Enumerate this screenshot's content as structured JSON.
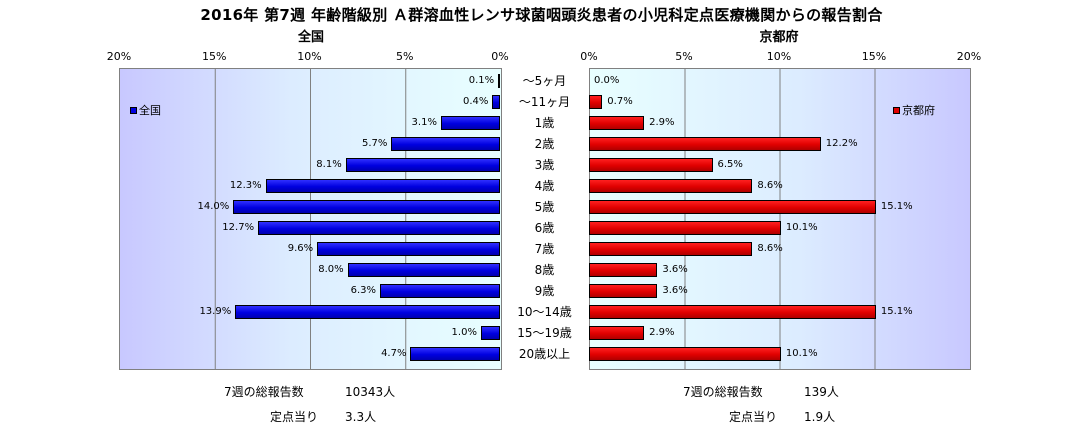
{
  "title": "2016年 第7週 年齢階級別 Ａ群溶血性レンサ球菌咽頭炎患者の小児科定点医療機関からの報告割合",
  "colors": {
    "national": "#0000e0",
    "kyoto": "#e00000"
  },
  "chart_data": {
    "type": "bar",
    "orientation": "horizontal",
    "categories": [
      "～5ヶ月",
      "～11ヶ月",
      "1歳",
      "2歳",
      "3歳",
      "4歳",
      "5歳",
      "6歳",
      "7歳",
      "8歳",
      "9歳",
      "10～14歳",
      "15～19歳",
      "20歳以上"
    ],
    "x_ticks": [
      "20%",
      "15%",
      "10%",
      "5%",
      "0%"
    ],
    "xlim": [
      0,
      20
    ],
    "series": [
      {
        "name": "全国",
        "subtitle": "全国",
        "side": "left",
        "values": [
          0.1,
          0.4,
          3.1,
          5.7,
          8.1,
          12.3,
          14.0,
          12.7,
          9.6,
          8.0,
          6.3,
          13.9,
          1.0,
          4.7
        ],
        "labels": [
          "0.1%",
          "0.4%",
          "3.1%",
          "5.7%",
          "8.1%",
          "12.3%",
          "14.0%",
          "12.7%",
          "9.6%",
          "8.0%",
          "6.3%",
          "13.9%",
          "1.0%",
          "4.7%"
        ],
        "legend_position": "top-left"
      },
      {
        "name": "京都府",
        "subtitle": "京都府",
        "side": "right",
        "values": [
          0.0,
          0.7,
          2.9,
          12.2,
          6.5,
          8.6,
          15.1,
          10.1,
          8.6,
          3.6,
          3.6,
          15.1,
          2.9,
          10.1
        ],
        "labels": [
          "0.0%",
          "0.7%",
          "2.9%",
          "12.2%",
          "6.5%",
          "8.6%",
          "15.1%",
          "10.1%",
          "8.6%",
          "3.6%",
          "3.6%",
          "15.1%",
          "2.9%",
          "10.1%"
        ],
        "legend_position": "top-right"
      }
    ],
    "grid": true
  },
  "footer": {
    "national_total_label": "7週の総報告数",
    "national_total_value": "10343人",
    "national_per_label": "定点当り",
    "national_per_value": "3.3人",
    "kyoto_total_label": "7週の総報告数",
    "kyoto_total_value": "139人",
    "kyoto_per_label": "定点当り",
    "kyoto_per_value": "1.9人"
  }
}
